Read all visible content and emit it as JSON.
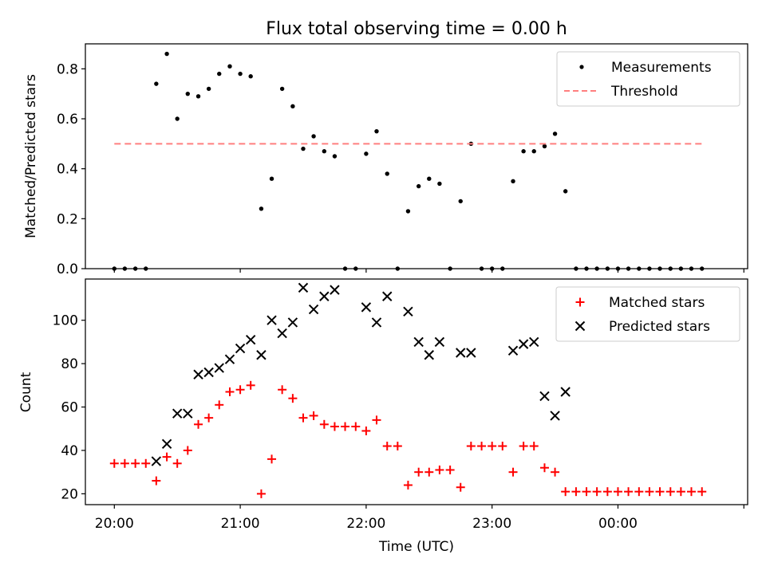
{
  "chart_data": [
    {
      "type": "scatter",
      "title": "Flux total observing time = 0.00 h",
      "xlabel": "",
      "ylabel": "Matched/Predicted stars",
      "xlim": [
        -0.23,
        5.03
      ],
      "ylim": [
        0,
        0.9
      ],
      "xticks": [
        0,
        1,
        2,
        3,
        4,
        5
      ],
      "yticks": [
        0.0,
        0.2,
        0.4,
        0.6,
        0.8
      ],
      "ytick_labels": [
        "0.0",
        "0.2",
        "0.4",
        "0.6",
        "0.8"
      ],
      "legend": {
        "position": "top-right",
        "entries": [
          "Measurements",
          "Threshold"
        ]
      },
      "series": [
        {
          "name": "Measurements",
          "marker": "dot",
          "color": "#000000",
          "x": [
            0.0,
            0.083,
            0.167,
            0.25,
            0.333,
            0.417,
            0.5,
            0.583,
            0.667,
            0.75,
            0.833,
            0.917,
            1.0,
            1.083,
            1.167,
            1.25,
            1.333,
            1.417,
            1.5,
            1.583,
            1.667,
            1.75,
            1.833,
            1.917,
            2.0,
            2.083,
            2.167,
            2.25,
            2.333,
            2.417,
            2.5,
            2.583,
            2.667,
            2.75,
            2.833,
            2.917,
            3.0,
            3.083,
            3.167,
            3.25,
            3.333,
            3.417,
            3.5,
            3.583,
            3.667,
            3.75,
            3.833,
            3.917,
            4.0,
            4.083,
            4.167,
            4.25,
            4.333,
            4.417,
            4.5,
            4.583,
            4.667
          ],
          "y": [
            0,
            0,
            0,
            0,
            0.74,
            0.86,
            0.6,
            0.7,
            0.69,
            0.72,
            0.78,
            0.81,
            0.78,
            0.77,
            0.24,
            0.36,
            0.72,
            0.65,
            0.48,
            0.53,
            0.47,
            0.45,
            0,
            0,
            0.46,
            0.55,
            0.38,
            0,
            0.23,
            0.33,
            0.36,
            0.34,
            0,
            0.27,
            0.5,
            0,
            0,
            0,
            0.35,
            0.47,
            0.47,
            0.49,
            0.54,
            0.31,
            0,
            0,
            0,
            0,
            0,
            0,
            0,
            0,
            0,
            0,
            0,
            0,
            0
          ]
        },
        {
          "name": "Threshold",
          "style": "dashed",
          "color": "#ff7f7f",
          "x": [
            0.0,
            4.667
          ],
          "y": [
            0.5,
            0.5
          ]
        }
      ]
    },
    {
      "type": "scatter",
      "title": "",
      "xlabel": "Time (UTC)",
      "ylabel": "Count",
      "xlim": [
        -0.23,
        5.03
      ],
      "ylim": [
        15,
        119
      ],
      "xticks": [
        0,
        1,
        2,
        3,
        4,
        5
      ],
      "xtick_labels": [
        "20:00",
        "21:00",
        "22:00",
        "23:00",
        "00:00",
        ""
      ],
      "yticks": [
        20,
        40,
        60,
        80,
        100
      ],
      "ytick_labels": [
        "20",
        "40",
        "60",
        "80",
        "100"
      ],
      "legend": {
        "position": "top-right",
        "entries": [
          "Matched stars",
          "Predicted stars"
        ]
      },
      "series": [
        {
          "name": "Matched stars",
          "marker": "plus",
          "color": "#ff0000",
          "x": [
            0.0,
            0.083,
            0.167,
            0.25,
            0.333,
            0.417,
            0.5,
            0.583,
            0.667,
            0.75,
            0.833,
            0.917,
            1.0,
            1.083,
            1.167,
            1.25,
            1.333,
            1.417,
            1.5,
            1.583,
            1.667,
            1.75,
            1.833,
            1.917,
            2.0,
            2.083,
            2.167,
            2.25,
            2.333,
            2.417,
            2.5,
            2.583,
            2.667,
            2.75,
            2.833,
            2.917,
            3.0,
            3.083,
            3.167,
            3.25,
            3.333,
            3.417,
            3.5,
            3.583,
            3.667,
            3.75,
            3.833,
            3.917,
            4.0,
            4.083,
            4.167,
            4.25,
            4.333,
            4.417,
            4.5,
            4.583,
            4.667
          ],
          "y": [
            34,
            34,
            34,
            34,
            26,
            37,
            34,
            40,
            52,
            55,
            61,
            67,
            68,
            70,
            20,
            36,
            68,
            64,
            55,
            56,
            52,
            51,
            51,
            51,
            49,
            54,
            42,
            42,
            24,
            30,
            30,
            31,
            31,
            23,
            42,
            42,
            42,
            42,
            30,
            42,
            42,
            32,
            30,
            21,
            21,
            21,
            21,
            21,
            21,
            21,
            21,
            21,
            21,
            21,
            21,
            21,
            21
          ]
        },
        {
          "name": "Predicted stars",
          "marker": "x",
          "color": "#000000",
          "x": [
            0.333,
            0.417,
            0.5,
            0.583,
            0.667,
            0.75,
            0.833,
            0.917,
            1.0,
            1.083,
            1.167,
            1.25,
            1.333,
            1.417,
            1.5,
            1.583,
            1.667,
            1.75,
            2.0,
            2.083,
            2.167,
            2.333,
            2.417,
            2.5,
            2.583,
            2.75,
            2.833,
            3.167,
            3.25,
            3.333,
            3.417,
            3.5,
            3.583
          ],
          "y": [
            35,
            43,
            57,
            57,
            75,
            76,
            78,
            82,
            87,
            91,
            84,
            100,
            94,
            99,
            115,
            105,
            111,
            114,
            106,
            99,
            111,
            104,
            90,
            84,
            90,
            85,
            85,
            86,
            89,
            90,
            65,
            56,
            67
          ]
        }
      ]
    }
  ]
}
